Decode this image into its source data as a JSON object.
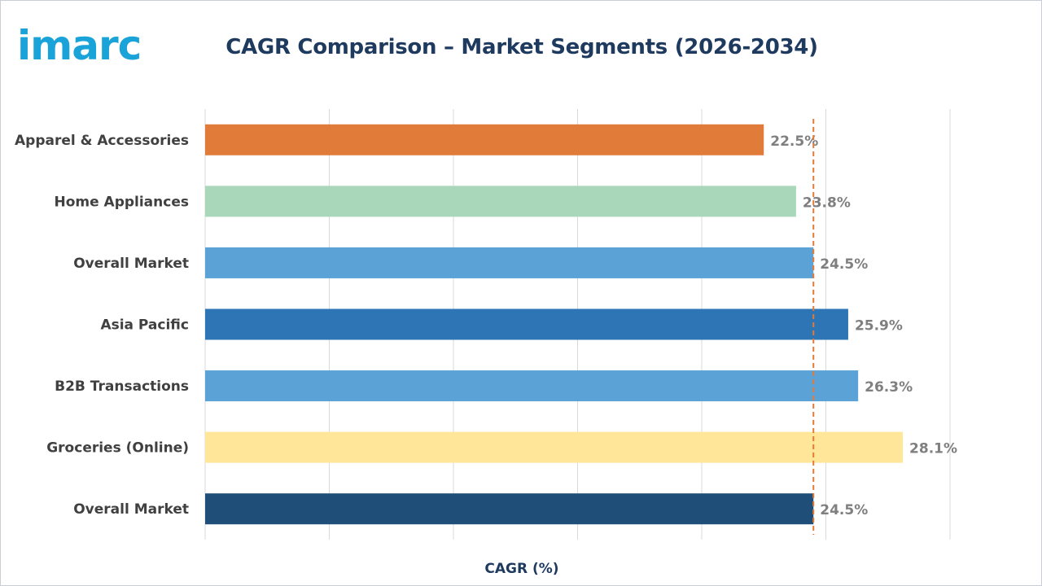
{
  "logo": {
    "text": "imarc",
    "color": "#1aa3d9"
  },
  "chart_data": {
    "type": "bar",
    "orientation": "horizontal",
    "title": "CAGR Comparison – Market Segments (2026-2034)",
    "xlabel": "CAGR (%)",
    "ylabel": "",
    "categories": [
      "Apparel & Accessories",
      "Home Appliances",
      "Overall Market",
      "Asia Pacific",
      "B2B Transactions",
      "Groceries (Online)",
      "Overall Market"
    ],
    "values": [
      22.5,
      23.8,
      24.5,
      25.9,
      26.3,
      28.1,
      24.5
    ],
    "value_labels": [
      "22.5%",
      "23.8%",
      "24.5%",
      "25.9%",
      "26.3%",
      "28.1%",
      "24.5%"
    ],
    "colors": [
      "#e07b39",
      "#a8d8b9",
      "#5ba3d6",
      "#2e75b6",
      "#5ba3d6",
      "#ffe699",
      "#1f4e79"
    ],
    "xlim": [
      0,
      30
    ],
    "x_ticks_visible": false,
    "grid": "vertical",
    "reference_line": {
      "value": 24.5,
      "style": "dashed",
      "color": "#e07b39"
    }
  }
}
